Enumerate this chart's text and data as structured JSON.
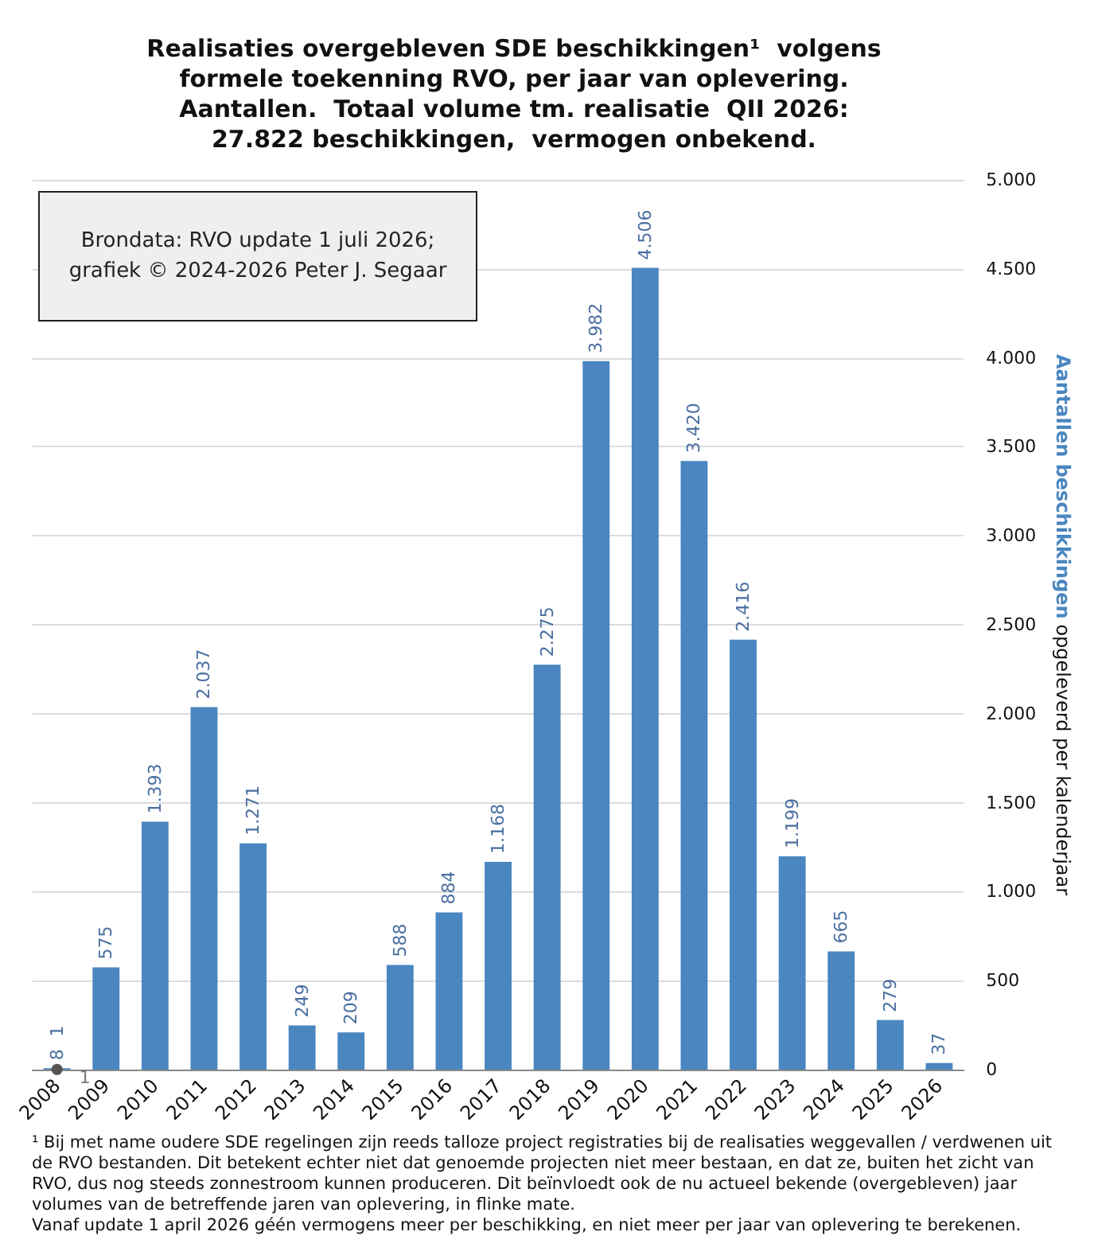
{
  "chart_data": {
    "type": "bar",
    "title": "Realisaties overgebleven SDE beschikkingen¹  volgens\nformele toekenning RVO, per jaar van oplevering.\nAantallen.  Totaal volume tm. realisatie  QII 2026:\n27.822 beschikkingen,  vermogen onbekend.",
    "ylabel": "Aantallen beschikkingen opgeleverd per kalenderjaar",
    "categories": [
      "2008",
      "2009",
      "2010",
      "2011",
      "2012",
      "2013",
      "2014",
      "2015",
      "2016",
      "2017",
      "2018",
      "2019",
      "2020",
      "2021",
      "2022",
      "2023",
      "2024",
      "2025",
      "2026"
    ],
    "series": [
      {
        "color": "#4a86c0",
        "values": [
          8,
          575,
          1393,
          2037,
          1271,
          249,
          209,
          588,
          884,
          1168,
          2275,
          3982,
          4506,
          3420,
          2416,
          1199,
          665,
          279,
          37
        ],
        "value_labels": [
          "8",
          "575",
          "1.393",
          "2.037",
          "1.271",
          "249",
          "209",
          "588",
          "884",
          "1.168",
          "2.275",
          "3.982",
          "4.506",
          "3.420",
          "2.416",
          "1.199",
          "665",
          "279",
          "37"
        ]
      },
      {
        "type": "line",
        "color": "#555555",
        "marker": "circle",
        "values": [
          1,
          null,
          null,
          null,
          null,
          null,
          null,
          null,
          null,
          null,
          null,
          null,
          null,
          null,
          null,
          null,
          null,
          null,
          null
        ],
        "value_labels": [
          "1",
          null,
          null,
          null,
          null,
          null,
          null,
          null,
          null,
          null,
          null,
          null,
          null,
          null,
          null,
          null,
          null,
          null,
          null
        ]
      }
    ],
    "ylim": [
      0,
      5000
    ],
    "yticks": [
      0,
      500,
      {
        "value": 1000,
        "label": "1.000"
      },
      {
        "value": 1500,
        "label": "1.500"
      },
      {
        "value": 2000,
        "label": "2.000"
      },
      {
        "value": 2500,
        "label": "2.500"
      },
      {
        "value": 3000,
        "label": "3.000"
      },
      {
        "value": 3500,
        "label": "3.500"
      },
      {
        "value": 4000,
        "label": "4.000"
      },
      {
        "value": 4500,
        "label": "4.500"
      },
      {
        "value": 5000,
        "label": "5.000"
      }
    ],
    "grid": "y",
    "annotations": [
      "Brondata: RVO update 1 juli 2026;\ngrafiek © 2024-2026 Peter J. Segaar",
      "¹ Bij met name oudere SDE regelingen zijn reeds talloze project registraties bij de realisaties weggevallen / verdwenen uit de RVO bestanden. Dit betekent echter niet dat genoemde projecten niet meer bestaan, en dat ze, buiten het zicht van RVO, dus nog steeds zonnestroom kunnen produceren. Dit beïnvloedt ook de nu actueel bekende (overgebleven) jaar volumes van de betreffende jaren van oplevering, in flinke mate.",
      "Vanaf update 1 april 2026 géén vermogens meer per beschikking, en niet meer per jaar van oplevering te berekenen.",
      {
        "text": "1",
        "x": "2008",
        "y": 1
      }
    ]
  }
}
